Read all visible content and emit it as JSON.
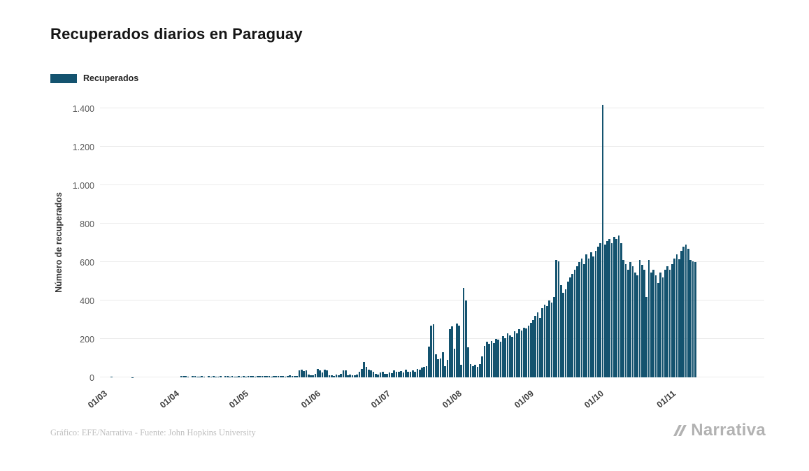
{
  "title": "Recuperados diarios en Paraguay",
  "legend": {
    "label": "Recuperados"
  },
  "footer": {
    "credit": "Gráfico: EFE/Narrativa - Fuente: John Hopkins University"
  },
  "logo": {
    "text": "Narrativa"
  },
  "colors": {
    "bar": "#14536f",
    "grid": "#ebebeb",
    "axis_text": "#5a5a5a",
    "title_text": "#161616",
    "footer_text": "#c0c0c0",
    "logo_gray": "#b2b2b2"
  },
  "chart_data": {
    "type": "bar",
    "title": "Recuperados diarios en Paraguay",
    "xlabel": "",
    "ylabel": "Número de recuperados",
    "ylim": [
      0,
      1400
    ],
    "grid": "horizontal",
    "legend_entries": [
      "Recuperados"
    ],
    "legend_position": "top-left",
    "yticks": [
      0,
      200,
      400,
      600,
      800,
      1000,
      1200,
      1400
    ],
    "ytick_labels": [
      "0",
      "200",
      "400",
      "600",
      "800",
      "1.000",
      "1.200",
      "1.400"
    ],
    "x_tick_labels": [
      "01/03",
      "01/04",
      "01/05",
      "01/06",
      "01/07",
      "01/08",
      "01/09",
      "01/10",
      "01/11"
    ],
    "x_tick_day_indices": [
      0,
      31,
      61,
      92,
      122,
      153,
      184,
      214,
      245
    ],
    "values": [
      0,
      0,
      0,
      0,
      2,
      0,
      0,
      0,
      0,
      0,
      0,
      0,
      0,
      1,
      0,
      0,
      0,
      0,
      0,
      0,
      0,
      0,
      0,
      0,
      0,
      0,
      0,
      0,
      0,
      0,
      0,
      0,
      0,
      0,
      9,
      6,
      7,
      5,
      0,
      6,
      8,
      5,
      4,
      6,
      5,
      0,
      7,
      5,
      6,
      4,
      5,
      6,
      0,
      8,
      6,
      5,
      7,
      4,
      5,
      6,
      4,
      6,
      5,
      7,
      6,
      8,
      5,
      7,
      6,
      9,
      7,
      6,
      8,
      5,
      7,
      9,
      6,
      8,
      7,
      5,
      8,
      10,
      9,
      7,
      8,
      35,
      40,
      32,
      38,
      15,
      12,
      10,
      18,
      42,
      38,
      25,
      40,
      35,
      12,
      10,
      8,
      15,
      12,
      18,
      35,
      35,
      10,
      14,
      12,
      10,
      16,
      30,
      45,
      80,
      55,
      40,
      35,
      28,
      20,
      16,
      25,
      30,
      20,
      18,
      25,
      22,
      35,
      30,
      28,
      32,
      25,
      40,
      28,
      28,
      35,
      30,
      45,
      40,
      50,
      55,
      60,
      160,
      270,
      275,
      120,
      95,
      100,
      130,
      60,
      90,
      250,
      265,
      150,
      280,
      270,
      65,
      465,
      400,
      155,
      70,
      60,
      65,
      55,
      70,
      110,
      165,
      185,
      175,
      190,
      180,
      200,
      195,
      185,
      215,
      205,
      230,
      220,
      210,
      240,
      230,
      250,
      245,
      260,
      255,
      270,
      285,
      300,
      320,
      340,
      310,
      360,
      380,
      370,
      400,
      390,
      420,
      610,
      605,
      480,
      440,
      460,
      500,
      520,
      540,
      560,
      580,
      600,
      620,
      590,
      640,
      620,
      650,
      630,
      660,
      680,
      700,
      1420,
      690,
      710,
      720,
      700,
      730,
      720,
      740,
      700,
      610,
      590,
      560,
      600,
      580,
      545,
      530,
      610,
      585,
      560,
      420,
      610,
      545,
      560,
      530,
      490,
      545,
      520,
      560,
      580,
      560,
      590,
      620,
      640,
      615,
      660,
      680,
      690,
      670,
      610,
      605,
      600
    ]
  }
}
